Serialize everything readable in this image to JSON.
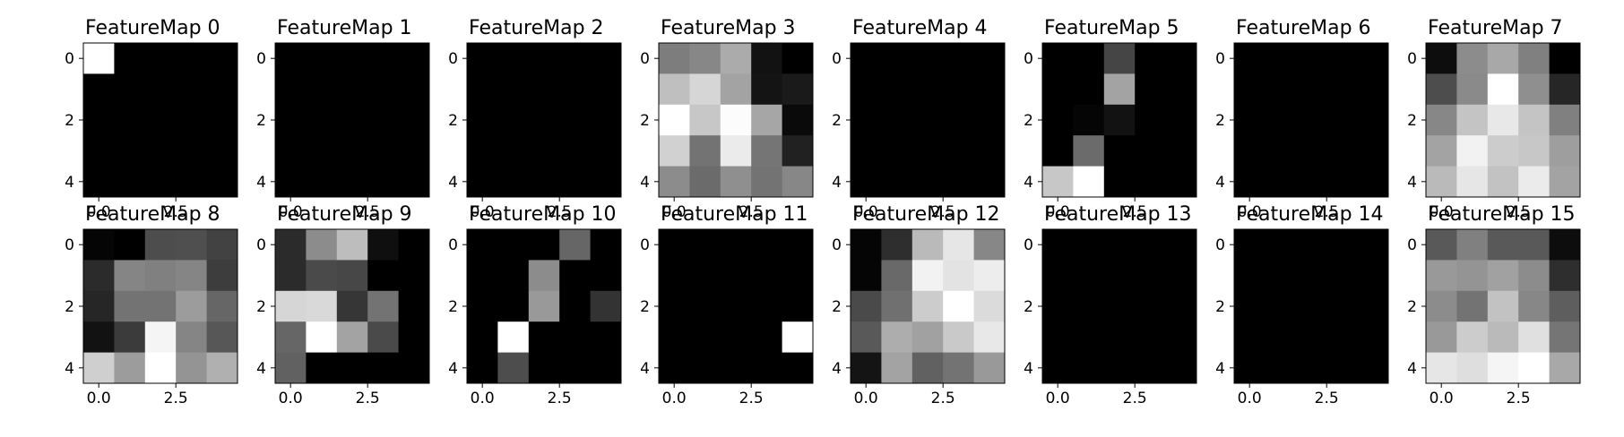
{
  "chart_data": {
    "type": "heatmap",
    "colormap": "gray",
    "grid": false,
    "rows": 2,
    "cols": 8,
    "xticks": [
      0.0,
      2.5
    ],
    "xtick_labels": [
      "0.0",
      "2.5"
    ],
    "yticks": [
      0,
      2,
      4
    ],
    "ytick_labels": [
      "0",
      "2",
      "4"
    ],
    "xlim": [
      -0.5,
      4.5
    ],
    "ylim": [
      4.5,
      -0.5
    ],
    "panels": [
      {
        "title": "FeatureMap 0",
        "values": [
          [
            1,
            0,
            0,
            0,
            0
          ],
          [
            0,
            0,
            0,
            0,
            0
          ],
          [
            0,
            0,
            0,
            0,
            0
          ],
          [
            0,
            0,
            0,
            0,
            0
          ],
          [
            0,
            0,
            0,
            0,
            0
          ]
        ]
      },
      {
        "title": "FeatureMap 1",
        "values": [
          [
            0,
            0,
            0,
            0,
            0
          ],
          [
            0,
            0,
            0,
            0,
            0
          ],
          [
            0,
            0,
            0,
            0,
            0
          ],
          [
            0,
            0,
            0,
            0,
            0
          ],
          [
            0,
            0,
            0,
            0,
            0
          ]
        ]
      },
      {
        "title": "FeatureMap 2",
        "values": [
          [
            0,
            0,
            0,
            0,
            0
          ],
          [
            0,
            0,
            0,
            0,
            0
          ],
          [
            0,
            0,
            0,
            0,
            0
          ],
          [
            0,
            0,
            0,
            0,
            0
          ],
          [
            0,
            0,
            0,
            0,
            0
          ]
        ]
      },
      {
        "title": "FeatureMap 3",
        "values": [
          [
            0.49,
            0.53,
            0.67,
            0.07,
            0.0
          ],
          [
            0.75,
            0.84,
            0.64,
            0.08,
            0.1
          ],
          [
            1.0,
            0.78,
            0.99,
            0.65,
            0.04
          ],
          [
            0.82,
            0.45,
            0.92,
            0.46,
            0.13
          ],
          [
            0.55,
            0.42,
            0.56,
            0.45,
            0.53
          ]
        ]
      },
      {
        "title": "FeatureMap 4",
        "values": [
          [
            0,
            0,
            0,
            0,
            0
          ],
          [
            0,
            0,
            0,
            0,
            0
          ],
          [
            0,
            0,
            0,
            0,
            0
          ],
          [
            0,
            0,
            0,
            0,
            0
          ],
          [
            0,
            0,
            0,
            0,
            0
          ]
        ]
      },
      {
        "title": "FeatureMap 5",
        "values": [
          [
            0,
            0,
            0.27,
            0,
            0
          ],
          [
            0,
            0,
            0.64,
            0,
            0
          ],
          [
            0,
            0.02,
            0.07,
            0,
            0
          ],
          [
            0,
            0.42,
            0,
            0,
            0
          ],
          [
            0.78,
            1.0,
            0,
            0,
            0
          ]
        ]
      },
      {
        "title": "FeatureMap 6",
        "values": [
          [
            0,
            0,
            0,
            0,
            0
          ],
          [
            0,
            0,
            0,
            0,
            0
          ],
          [
            0,
            0,
            0,
            0,
            0
          ],
          [
            0,
            0,
            0,
            0,
            0
          ],
          [
            0,
            0,
            0,
            0,
            0
          ]
        ]
      },
      {
        "title": "FeatureMap 7",
        "values": [
          [
            0.05,
            0.55,
            0.66,
            0.5,
            0.0
          ],
          [
            0.3,
            0.54,
            1.0,
            0.56,
            0.15
          ],
          [
            0.53,
            0.77,
            0.91,
            0.77,
            0.5
          ],
          [
            0.64,
            0.95,
            0.8,
            0.78,
            0.62
          ],
          [
            0.73,
            0.9,
            0.76,
            0.92,
            0.64
          ]
        ]
      },
      {
        "title": "FeatureMap 8",
        "values": [
          [
            0.02,
            0.0,
            0.3,
            0.31,
            0.26
          ],
          [
            0.17,
            0.52,
            0.5,
            0.52,
            0.24
          ],
          [
            0.15,
            0.45,
            0.45,
            0.61,
            0.4
          ],
          [
            0.07,
            0.23,
            0.96,
            0.52,
            0.34
          ],
          [
            0.81,
            0.61,
            1.0,
            0.58,
            0.69
          ]
        ]
      },
      {
        "title": "FeatureMap 9",
        "values": [
          [
            0.17,
            0.55,
            0.74,
            0.06,
            0.0
          ],
          [
            0.17,
            0.29,
            0.28,
            0.0,
            0.0
          ],
          [
            0.84,
            0.85,
            0.21,
            0.45,
            0.0
          ],
          [
            0.4,
            1.0,
            0.64,
            0.29,
            0.0
          ],
          [
            0.38,
            0.0,
            0.0,
            0.0,
            0.0
          ]
        ]
      },
      {
        "title": "FeatureMap 10",
        "values": [
          [
            0,
            0,
            0,
            0.4,
            0
          ],
          [
            0,
            0,
            0.55,
            0,
            0
          ],
          [
            0,
            0,
            0.6,
            0,
            0.2
          ],
          [
            0,
            1.0,
            0,
            0,
            0
          ],
          [
            0,
            0.3,
            0,
            0,
            0
          ]
        ]
      },
      {
        "title": "FeatureMap 11",
        "values": [
          [
            0,
            0,
            0,
            0,
            0
          ],
          [
            0,
            0,
            0,
            0,
            0
          ],
          [
            0,
            0,
            0,
            0,
            0
          ],
          [
            0,
            0,
            0,
            0,
            1.0
          ],
          [
            0,
            0,
            0,
            0,
            0
          ]
        ]
      },
      {
        "title": "FeatureMap 12",
        "values": [
          [
            0.02,
            0.18,
            0.73,
            0.9,
            0.53
          ],
          [
            0.02,
            0.41,
            0.95,
            0.89,
            0.93
          ],
          [
            0.29,
            0.44,
            0.8,
            1.0,
            0.86
          ],
          [
            0.35,
            0.68,
            0.63,
            0.79,
            0.91
          ],
          [
            0.08,
            0.64,
            0.38,
            0.45,
            0.6
          ]
        ]
      },
      {
        "title": "FeatureMap 13",
        "values": [
          [
            0,
            0,
            0,
            0,
            0
          ],
          [
            0,
            0,
            0,
            0,
            0
          ],
          [
            0,
            0,
            0,
            0,
            0
          ],
          [
            0,
            0,
            0,
            0,
            0
          ],
          [
            0,
            0,
            0,
            0,
            0
          ]
        ]
      },
      {
        "title": "FeatureMap 14",
        "values": [
          [
            0,
            0,
            0,
            0,
            0
          ],
          [
            0,
            0,
            0,
            0,
            0
          ],
          [
            0,
            0,
            0,
            0,
            0
          ],
          [
            0,
            0,
            0,
            0,
            0
          ],
          [
            0,
            0,
            0,
            0,
            0
          ]
        ]
      },
      {
        "title": "FeatureMap 15",
        "values": [
          [
            0.35,
            0.5,
            0.35,
            0.35,
            0.05
          ],
          [
            0.6,
            0.58,
            0.63,
            0.55,
            0.18
          ],
          [
            0.55,
            0.45,
            0.76,
            0.53,
            0.37
          ],
          [
            0.6,
            0.8,
            0.73,
            0.88,
            0.46
          ],
          [
            0.9,
            0.87,
            0.96,
            1.0,
            0.66
          ]
        ]
      }
    ]
  }
}
